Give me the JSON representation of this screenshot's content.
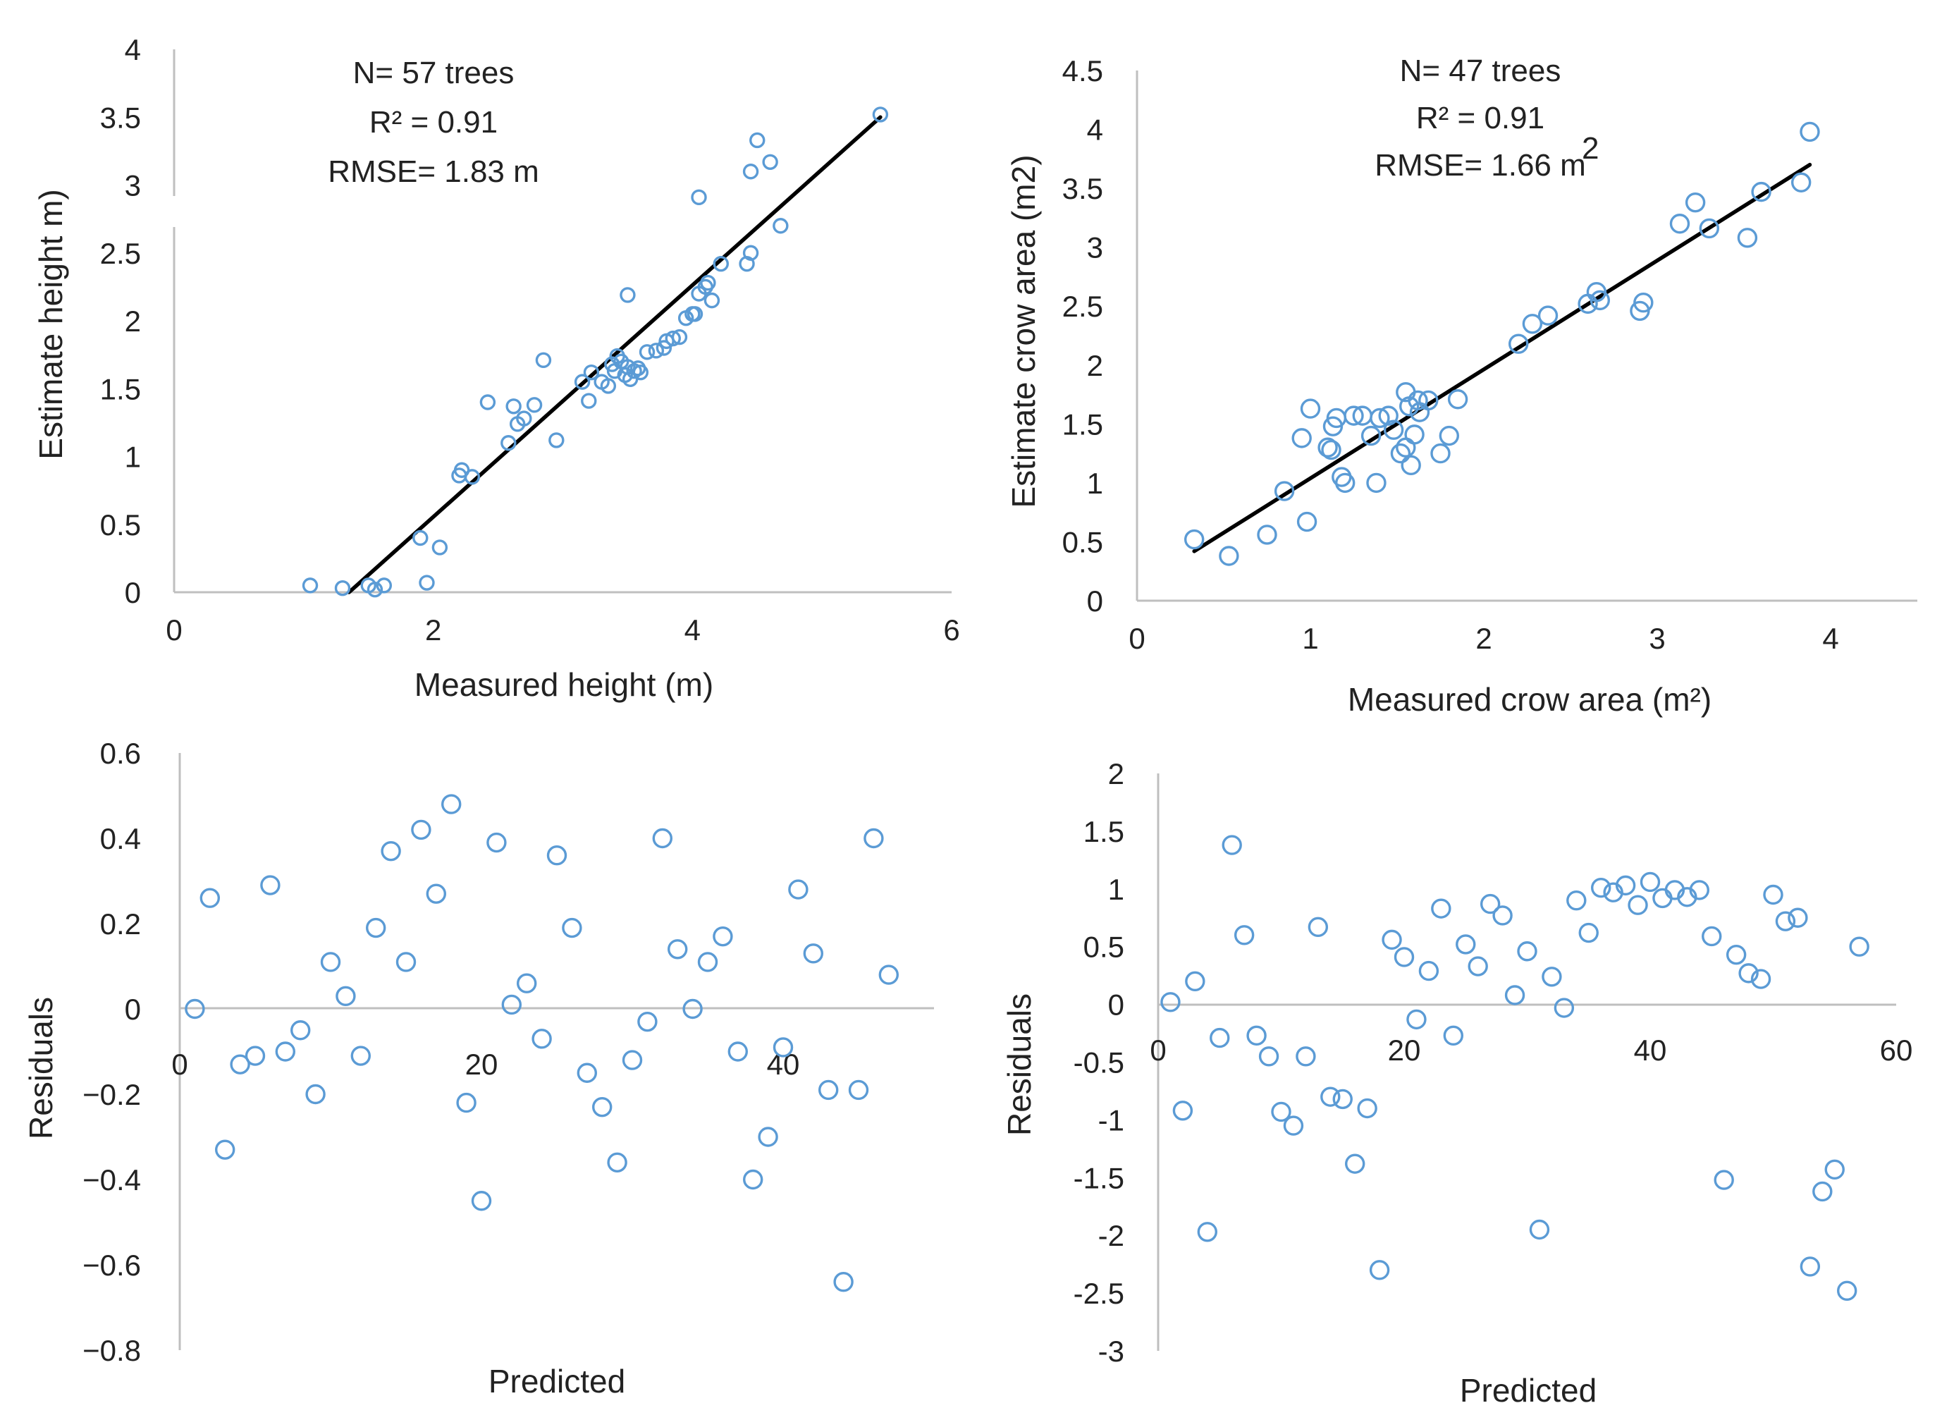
{
  "chart_data": [
    {
      "id": "p1",
      "type": "scatter",
      "xlabel": "Measured height (m)",
      "ylabel": "Estimate height  m)",
      "xlim": [
        0,
        6
      ],
      "ylim": [
        0,
        4
      ],
      "xticks": [
        "0",
        "2",
        "4",
        "6"
      ],
      "yticks": [
        "0",
        "0.5",
        "1",
        "1.5",
        "2",
        "2.5",
        "3",
        "3.5",
        "4"
      ],
      "annotations": [
        "N= 57 trees",
        "R² = 0.91",
        "RMSE= 1.83 m"
      ],
      "fit_line": [
        [
          1.35,
          0.0
        ],
        [
          5.45,
          3.5
        ]
      ],
      "points": [
        [
          1.05,
          0.05
        ],
        [
          1.3,
          0.03
        ],
        [
          1.5,
          0.05
        ],
        [
          1.55,
          0.02
        ],
        [
          1.62,
          0.05
        ],
        [
          1.9,
          0.4
        ],
        [
          1.95,
          0.07
        ],
        [
          2.05,
          0.33
        ],
        [
          2.2,
          0.86
        ],
        [
          2.22,
          0.9
        ],
        [
          2.3,
          0.85
        ],
        [
          2.42,
          1.4
        ],
        [
          2.58,
          1.1
        ],
        [
          2.62,
          1.37
        ],
        [
          2.65,
          1.24
        ],
        [
          2.7,
          1.28
        ],
        [
          2.78,
          1.38
        ],
        [
          2.85,
          1.71
        ],
        [
          2.95,
          1.12
        ],
        [
          3.15,
          1.55
        ],
        [
          3.2,
          1.41
        ],
        [
          3.22,
          1.62
        ],
        [
          3.3,
          1.55
        ],
        [
          3.35,
          1.52
        ],
        [
          3.38,
          1.68
        ],
        [
          3.4,
          1.63
        ],
        [
          3.42,
          1.74
        ],
        [
          3.45,
          1.7
        ],
        [
          3.48,
          1.6
        ],
        [
          3.5,
          1.66
        ],
        [
          3.52,
          1.57
        ],
        [
          3.55,
          1.63
        ],
        [
          3.58,
          1.65
        ],
        [
          3.6,
          1.62
        ],
        [
          3.5,
          2.19
        ],
        [
          3.65,
          1.77
        ],
        [
          3.72,
          1.78
        ],
        [
          3.78,
          1.8
        ],
        [
          3.8,
          1.85
        ],
        [
          3.85,
          1.87
        ],
        [
          3.9,
          1.88
        ],
        [
          3.95,
          2.02
        ],
        [
          4.0,
          2.05
        ],
        [
          4.02,
          2.05
        ],
        [
          4.05,
          2.2
        ],
        [
          4.1,
          2.25
        ],
        [
          4.12,
          2.28
        ],
        [
          4.15,
          2.15
        ],
        [
          4.05,
          2.91
        ],
        [
          4.22,
          2.42
        ],
        [
          4.42,
          2.42
        ],
        [
          4.45,
          2.5
        ],
        [
          4.45,
          3.1
        ],
        [
          4.5,
          3.33
        ],
        [
          4.6,
          3.17
        ],
        [
          4.68,
          2.7
        ],
        [
          5.45,
          3.52
        ]
      ]
    },
    {
      "id": "p2",
      "type": "scatter",
      "xlabel": "Measured crow area (m²)",
      "ylabel": "Estimate crow area (m2)",
      "xlim": [
        0,
        4.5
      ],
      "ylim": [
        0,
        4.5
      ],
      "xticks": [
        "0",
        "1",
        "2",
        "3",
        "4"
      ],
      "yticks": [
        "0",
        "0.5",
        "1",
        "1.5",
        "2",
        "2.5",
        "3",
        "3.5",
        "4",
        "4.5"
      ],
      "annotations": [
        "N= 47 trees",
        "R² = 0.91",
        "RMSE= 1.66 m",
        "2"
      ],
      "fit_line": [
        [
          0.33,
          0.42
        ],
        [
          3.88,
          3.7
        ]
      ],
      "points": [
        [
          0.33,
          0.52
        ],
        [
          0.53,
          0.38
        ],
        [
          0.75,
          0.56
        ],
        [
          0.85,
          0.93
        ],
        [
          0.95,
          1.38
        ],
        [
          0.98,
          0.67
        ],
        [
          1.0,
          1.63
        ],
        [
          1.1,
          1.3
        ],
        [
          1.12,
          1.28
        ],
        [
          1.13,
          1.48
        ],
        [
          1.15,
          1.55
        ],
        [
          1.18,
          1.05
        ],
        [
          1.2,
          1.0
        ],
        [
          1.25,
          1.57
        ],
        [
          1.3,
          1.57
        ],
        [
          1.35,
          1.4
        ],
        [
          1.38,
          1.0
        ],
        [
          1.4,
          1.55
        ],
        [
          1.45,
          1.57
        ],
        [
          1.48,
          1.45
        ],
        [
          1.52,
          1.25
        ],
        [
          1.55,
          1.3
        ],
        [
          1.55,
          1.77
        ],
        [
          1.57,
          1.65
        ],
        [
          1.58,
          1.15
        ],
        [
          1.6,
          1.41
        ],
        [
          1.62,
          1.7
        ],
        [
          1.63,
          1.6
        ],
        [
          1.68,
          1.7
        ],
        [
          1.75,
          1.25
        ],
        [
          1.8,
          1.4
        ],
        [
          1.85,
          1.71
        ],
        [
          2.2,
          2.18
        ],
        [
          2.28,
          2.35
        ],
        [
          2.37,
          2.42
        ],
        [
          2.6,
          2.52
        ],
        [
          2.65,
          2.62
        ],
        [
          2.67,
          2.55
        ],
        [
          2.9,
          2.46
        ],
        [
          2.92,
          2.53
        ],
        [
          3.13,
          3.2
        ],
        [
          3.22,
          3.38
        ],
        [
          3.3,
          3.16
        ],
        [
          3.52,
          3.08
        ],
        [
          3.6,
          3.47
        ],
        [
          3.83,
          3.55
        ],
        [
          3.88,
          3.98
        ]
      ]
    },
    {
      "id": "p3",
      "type": "scatter",
      "xlabel": "Predicted",
      "ylabel": "Residuals",
      "xlim": [
        0,
        50
      ],
      "ylim": [
        -0.8,
        0.6
      ],
      "xticks": [
        "0",
        "20",
        "40"
      ],
      "yticks": [
        "0.6",
        "0.4",
        "0.2",
        "0",
        "−0.2",
        "−0.4",
        "−0.6",
        "−0.8"
      ],
      "points": [
        [
          1,
          0.0
        ],
        [
          2,
          0.26
        ],
        [
          3,
          -0.33
        ],
        [
          4,
          -0.13
        ],
        [
          5,
          -0.11
        ],
        [
          6,
          0.29
        ],
        [
          7,
          -0.1
        ],
        [
          8,
          -0.05
        ],
        [
          9,
          -0.2
        ],
        [
          10,
          0.11
        ],
        [
          11,
          0.03
        ],
        [
          12,
          -0.11
        ],
        [
          13,
          0.19
        ],
        [
          14,
          0.37
        ],
        [
          15,
          0.11
        ],
        [
          16,
          0.42
        ],
        [
          17,
          0.27
        ],
        [
          18,
          0.48
        ],
        [
          19,
          -0.22
        ],
        [
          20,
          -0.45
        ],
        [
          21,
          0.39
        ],
        [
          22,
          0.01
        ],
        [
          23,
          0.06
        ],
        [
          24,
          -0.07
        ],
        [
          25,
          0.36
        ],
        [
          26,
          0.19
        ],
        [
          27,
          -0.15
        ],
        [
          28,
          -0.23
        ],
        [
          29,
          -0.36
        ],
        [
          30,
          -0.12
        ],
        [
          31,
          -0.03
        ],
        [
          32,
          0.4
        ],
        [
          33,
          0.14
        ],
        [
          34,
          0.0
        ],
        [
          35,
          0.11
        ],
        [
          36,
          0.17
        ],
        [
          37,
          -0.1
        ],
        [
          38,
          -0.4
        ],
        [
          39,
          -0.3
        ],
        [
          40,
          -0.09
        ],
        [
          41,
          0.28
        ],
        [
          42,
          0.13
        ],
        [
          43,
          -0.19
        ],
        [
          44,
          -0.64
        ],
        [
          45,
          -0.19
        ],
        [
          46,
          0.4
        ],
        [
          47,
          0.08
        ]
      ]
    },
    {
      "id": "p4",
      "type": "scatter",
      "xlabel": "Predicted",
      "ylabel": "Residuals",
      "xlim": [
        0,
        60
      ],
      "ylim": [
        -3,
        2
      ],
      "xticks": [
        "0",
        "20",
        "40",
        "60"
      ],
      "yticks": [
        "2",
        "1.5",
        "1",
        "0.5",
        "0",
        "-0.5",
        "-1",
        "-1.5",
        "-2",
        "-2.5",
        "-3"
      ],
      "points": [
        [
          1,
          0.02
        ],
        [
          2,
          -0.92
        ],
        [
          3,
          0.2
        ],
        [
          4,
          -1.97
        ],
        [
          5,
          -0.29
        ],
        [
          6,
          1.38
        ],
        [
          7,
          0.6
        ],
        [
          8,
          -0.27
        ],
        [
          9,
          -0.45
        ],
        [
          10,
          -0.93
        ],
        [
          11,
          -1.05
        ],
        [
          12,
          -0.45
        ],
        [
          13,
          0.67
        ],
        [
          14,
          -0.8
        ],
        [
          15,
          -0.82
        ],
        [
          16,
          -1.38
        ],
        [
          17,
          -0.9
        ],
        [
          18,
          -2.3
        ],
        [
          19,
          0.56
        ],
        [
          20,
          0.41
        ],
        [
          21,
          -0.13
        ],
        [
          22,
          0.29
        ],
        [
          23,
          0.83
        ],
        [
          24,
          -0.27
        ],
        [
          25,
          0.52
        ],
        [
          26,
          0.33
        ],
        [
          27,
          0.87
        ],
        [
          28,
          0.77
        ],
        [
          29,
          0.08
        ],
        [
          30,
          0.46
        ],
        [
          31,
          -1.95
        ],
        [
          32,
          0.24
        ],
        [
          33,
          -0.03
        ],
        [
          34,
          0.9
        ],
        [
          35,
          0.62
        ],
        [
          36,
          1.01
        ],
        [
          37,
          0.97
        ],
        [
          38,
          1.03
        ],
        [
          39,
          0.86
        ],
        [
          40,
          1.06
        ],
        [
          41,
          0.92
        ],
        [
          42,
          0.99
        ],
        [
          43,
          0.93
        ],
        [
          44,
          0.99
        ],
        [
          45,
          0.59
        ],
        [
          46,
          -1.52
        ],
        [
          47,
          0.43
        ],
        [
          48,
          0.27
        ],
        [
          49,
          0.22
        ],
        [
          50,
          0.95
        ],
        [
          51,
          0.72
        ],
        [
          52,
          0.75
        ],
        [
          53,
          -2.27
        ],
        [
          54,
          -1.62
        ],
        [
          55,
          -1.43
        ],
        [
          56,
          -2.48
        ],
        [
          57,
          0.5
        ]
      ]
    }
  ]
}
